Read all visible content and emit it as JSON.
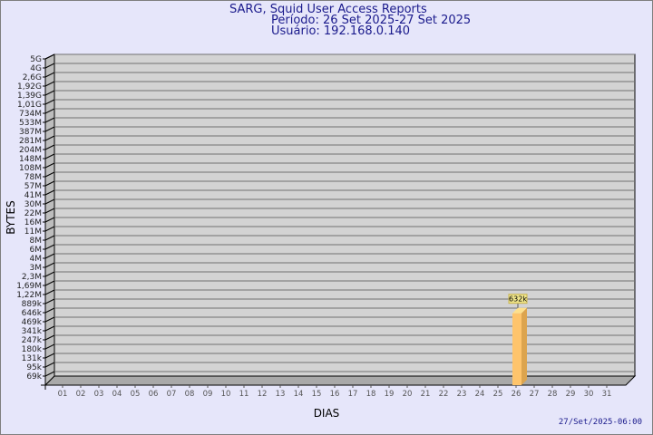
{
  "chart_data": {
    "type": "bar",
    "title": "SARG, Squid User Access Reports",
    "subtitle": [
      "Período: 26 Set 2025-27 Set 2025",
      "Usuário: 192.168.0.140"
    ],
    "xlabel": "DIAS",
    "ylabel": "BYTES",
    "y_scale": "log",
    "grid": true,
    "y_ticks": [
      "5G",
      "4G",
      "2,6G",
      "1,92G",
      "1,39G",
      "1,01G",
      "734M",
      "533M",
      "387M",
      "281M",
      "204M",
      "148M",
      "108M",
      "78M",
      "57M",
      "41M",
      "30M",
      "22M",
      "16M",
      "11M",
      "8M",
      "6M",
      "4M",
      "3M",
      "2,3M",
      "1,69M",
      "1,22M",
      "889k",
      "646k",
      "469k",
      "341k",
      "247k",
      "180k",
      "131k",
      "95k",
      "69k"
    ],
    "categories": [
      "01",
      "02",
      "03",
      "04",
      "05",
      "06",
      "07",
      "08",
      "09",
      "10",
      "11",
      "12",
      "13",
      "14",
      "15",
      "16",
      "17",
      "18",
      "19",
      "20",
      "21",
      "22",
      "23",
      "24",
      "25",
      "26",
      "27",
      "28",
      "29",
      "30",
      "31"
    ],
    "bars": [
      {
        "category": "26",
        "value": 632000,
        "label": "632k"
      }
    ],
    "colors": {
      "bar": "#fec46c",
      "bar_side": "#dca44e",
      "bar_top": "#fee08c",
      "plot": "#d3d3d3",
      "text": "#1a1a8c"
    }
  },
  "footer": {
    "timestamp": "27/Set/2025-06:00"
  }
}
